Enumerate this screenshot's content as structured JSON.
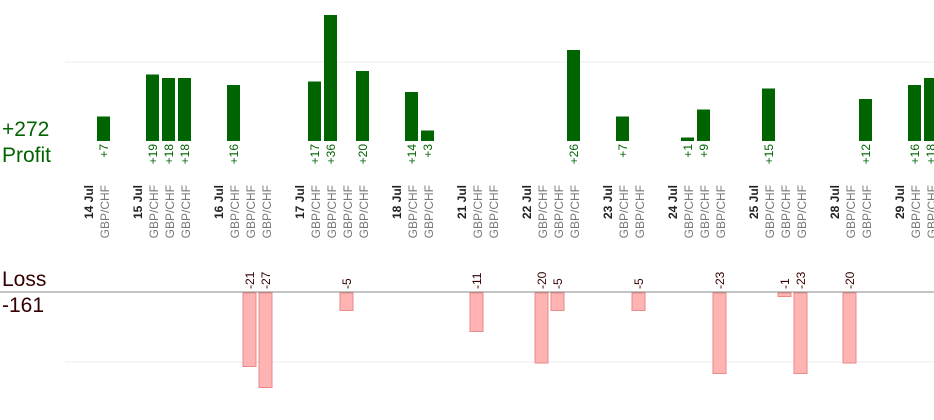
{
  "summary": {
    "profit_total": "+272",
    "profit_label": "Profit",
    "loss_label": "Loss",
    "loss_total": "-161"
  },
  "colors": {
    "profit_bar": "#006400",
    "loss_bar": "#ffb3b3",
    "loss_bar_edge": "#e88a8a",
    "profit_text": "#006400",
    "loss_text": "#330000",
    "date_text": "#222222",
    "pair_text": "#777777",
    "baseline": "#888888",
    "grid": "#eeeeee"
  },
  "chart_data": {
    "type": "bar",
    "days": [
      {
        "date": "14 Jul",
        "trades": [
          {
            "pair": "GBP/CHF",
            "value": 7
          }
        ]
      },
      {
        "date": "15 Jul",
        "trades": [
          {
            "pair": "GBP/CHF",
            "value": 19
          },
          {
            "pair": "GBP/CHF",
            "value": 18
          },
          {
            "pair": "GBP/CHF",
            "value": 18
          }
        ]
      },
      {
        "date": "16 Jul",
        "trades": [
          {
            "pair": "GBP/CHF",
            "value": 16
          },
          {
            "pair": "GBP/CHF",
            "value": -21
          },
          {
            "pair": "GBP/CHF",
            "value": -27
          }
        ]
      },
      {
        "date": "17 Jul",
        "trades": [
          {
            "pair": "GBP/CHF",
            "value": 17
          },
          {
            "pair": "GBP/CHF",
            "value": 36
          },
          {
            "pair": "GBP/CHF",
            "value": -5
          },
          {
            "pair": "GBP/CHF",
            "value": 20
          }
        ]
      },
      {
        "date": "18 Jul",
        "trades": [
          {
            "pair": "GBP/CHF",
            "value": 14
          },
          {
            "pair": "GBP/CHF",
            "value": 3
          }
        ]
      },
      {
        "date": "21 Jul",
        "trades": [
          {
            "pair": "GBP/CHF",
            "value": -11
          },
          {
            "pair": "GBP/CHF",
            "value": null
          }
        ]
      },
      {
        "date": "22 Jul",
        "trades": [
          {
            "pair": "GBP/CHF",
            "value": -20
          },
          {
            "pair": "GBP/CHF",
            "value": -5
          },
          {
            "pair": "GBP/CHF",
            "value": 26
          }
        ]
      },
      {
        "date": "23 Jul",
        "trades": [
          {
            "pair": "GBP/CHF",
            "value": 7
          },
          {
            "pair": "GBP/CHF",
            "value": -5
          }
        ]
      },
      {
        "date": "24 Jul",
        "trades": [
          {
            "pair": "GBP/CHF",
            "value": 1
          },
          {
            "pair": "GBP/CHF",
            "value": 9
          },
          {
            "pair": "GBP/CHF",
            "value": -23
          }
        ]
      },
      {
        "date": "25 Jul",
        "trades": [
          {
            "pair": "GBP/CHF",
            "value": 15
          },
          {
            "pair": "GBP/CHF",
            "value": -1
          },
          {
            "pair": "GBP/CHF",
            "value": -23
          }
        ]
      },
      {
        "date": "28 Jul",
        "trades": [
          {
            "pair": "GBP/CHF",
            "value": -20
          },
          {
            "pair": "GBP/CHF",
            "value": 12
          }
        ]
      },
      {
        "date": "29 Jul",
        "trades": [
          {
            "pair": "GBP/CHF",
            "value": 16
          },
          {
            "pair": "GBP/CHF",
            "value": 18
          }
        ]
      }
    ]
  }
}
